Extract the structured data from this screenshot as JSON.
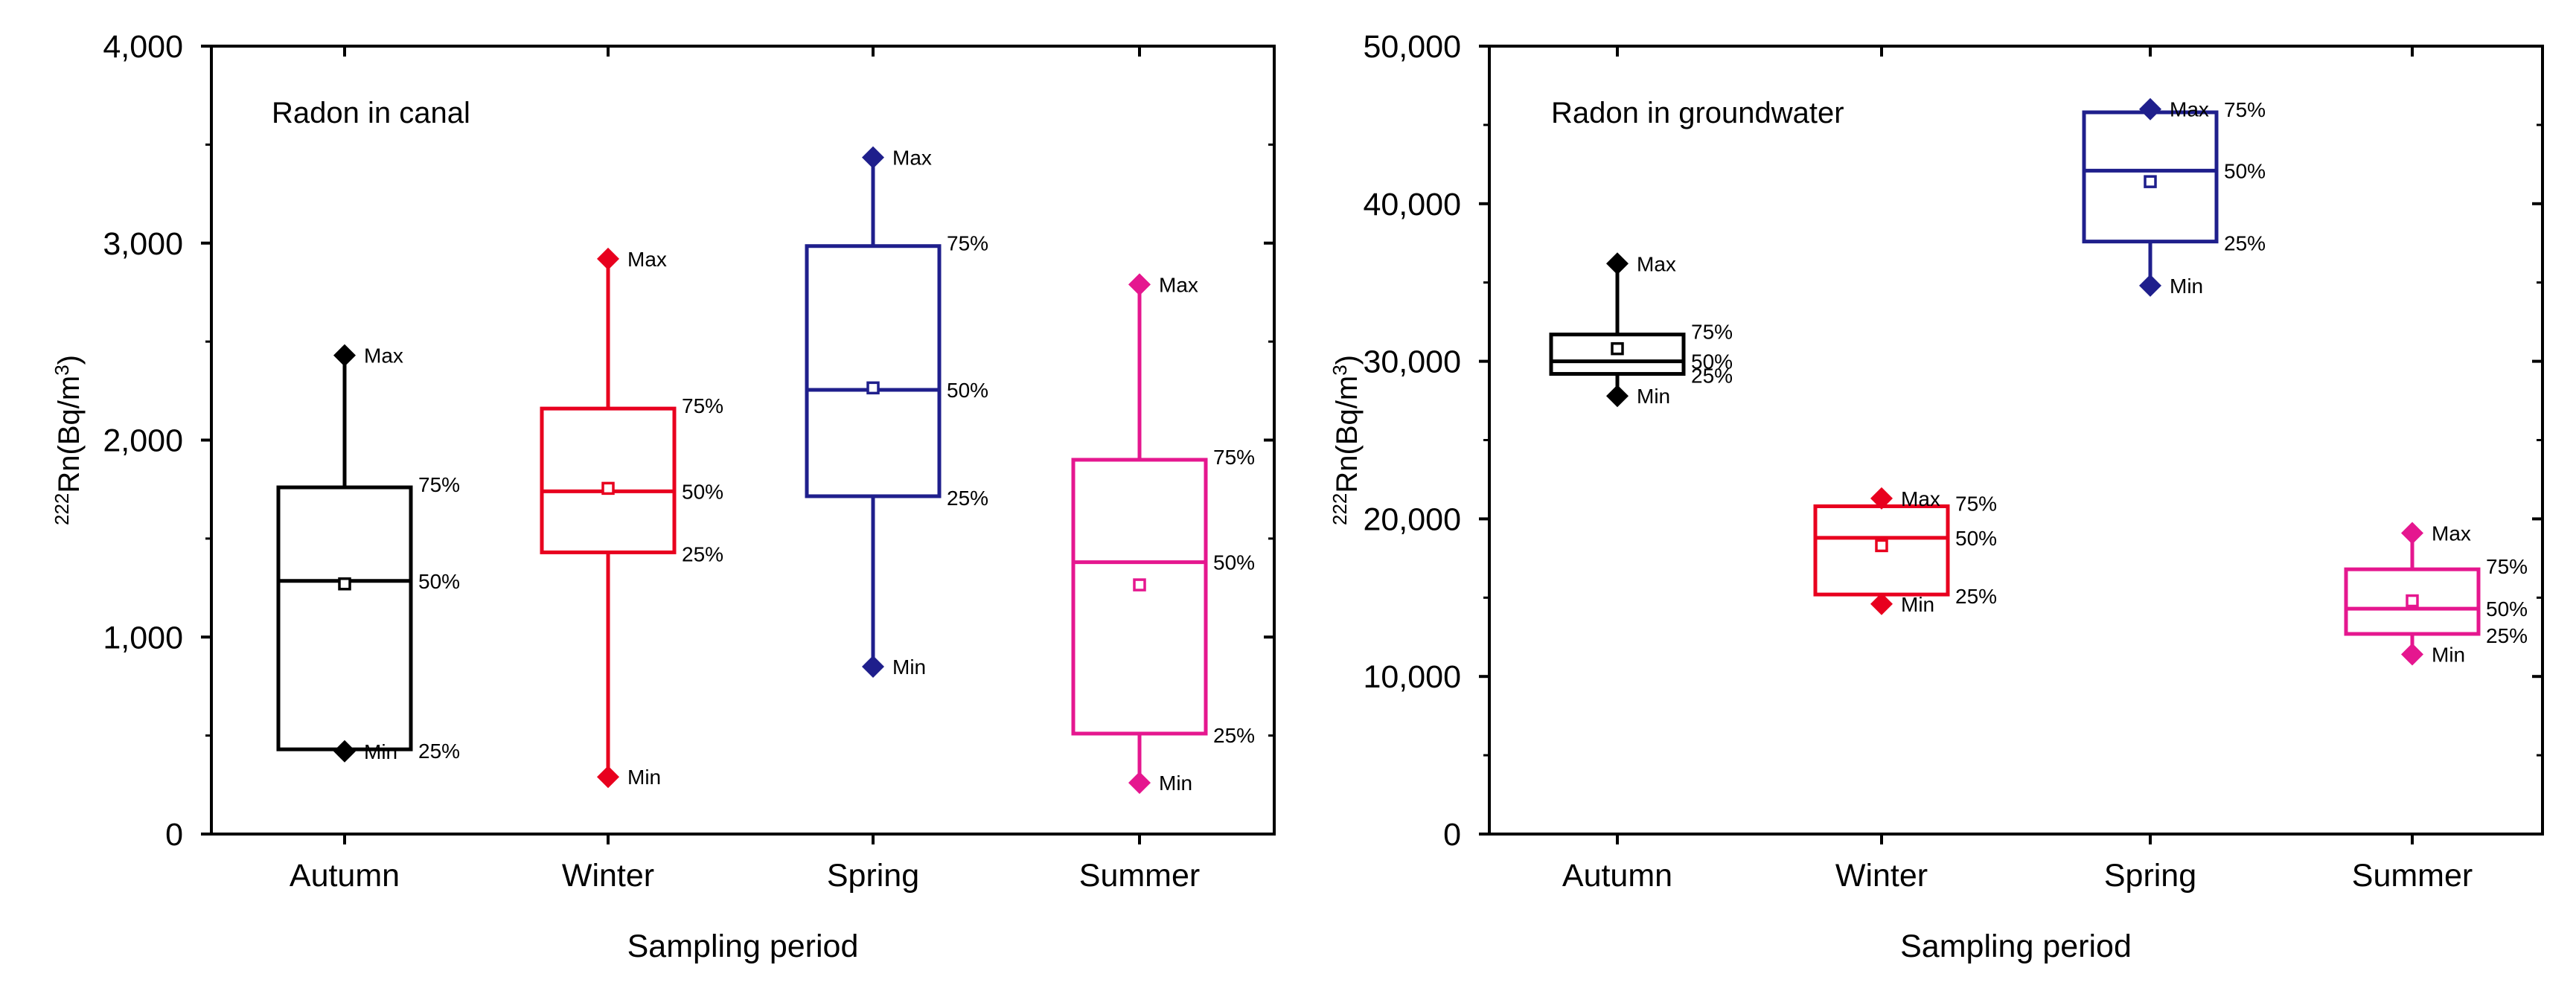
{
  "chart_data": [
    {
      "type": "box",
      "title": "Radon in canal",
      "xlabel": "Sampling period",
      "ylabel_sup": "222",
      "ylabel": "Rn(Bq/m",
      "ylabel_exp": "3",
      "ylabel_end": ")",
      "ylim": [
        0,
        4000
      ],
      "yticks": [
        0,
        1000,
        2000,
        3000,
        4000
      ],
      "ytick_labels": [
        "0",
        "1,000",
        "2,000",
        "3,000",
        "4,000"
      ],
      "categories": [
        "Autumn",
        "Winter",
        "Spring",
        "Summer"
      ],
      "colors": [
        "#000000",
        "#e8001e",
        "#1f1f8c",
        "#e5178f"
      ],
      "boxes": [
        {
          "min": 420,
          "q1": 430,
          "median": 1285,
          "mean": 1270,
          "q3": 1760,
          "max": 2430
        },
        {
          "min": 290,
          "q1": 1430,
          "median": 1740,
          "mean": 1755,
          "q3": 2160,
          "max": 2920
        },
        {
          "min": 850,
          "q1": 1715,
          "median": 2255,
          "mean": 2265,
          "q3": 2985,
          "max": 3435
        },
        {
          "min": 260,
          "q1": 510,
          "median": 1380,
          "mean": 1265,
          "q3": 1900,
          "max": 2790
        }
      ],
      "labels": {
        "max": "Max",
        "min": "Min",
        "q3": "75%",
        "median": "50%",
        "q1": "25%"
      }
    },
    {
      "type": "box",
      "title": "Radon in groundwater",
      "xlabel": "Sampling period",
      "ylabel_sup": "222",
      "ylabel": "Rn(Bq/m",
      "ylabel_exp": "3",
      "ylabel_end": ")",
      "ylim": [
        0,
        50000
      ],
      "yticks": [
        0,
        10000,
        20000,
        30000,
        40000,
        50000
      ],
      "ytick_labels": [
        "0",
        "10,000",
        "20,000",
        "30,000",
        "40,000",
        "50,000"
      ],
      "categories": [
        "Autumn",
        "Winter",
        "Spring",
        "Summer"
      ],
      "colors": [
        "#000000",
        "#e8001e",
        "#1f1f8c",
        "#e5178f"
      ],
      "boxes": [
        {
          "min": 27800,
          "q1": 29200,
          "median": 30000,
          "mean": 30800,
          "q3": 31700,
          "max": 36200
        },
        {
          "min": 14600,
          "q1": 15200,
          "median": 18800,
          "mean": 18300,
          "q3": 20800,
          "max": 21300
        },
        {
          "min": 34800,
          "q1": 37600,
          "median": 42100,
          "mean": 41400,
          "q3": 45800,
          "max": 46000
        },
        {
          "min": 11400,
          "q1": 12700,
          "median": 14300,
          "mean": 14800,
          "q3": 16800,
          "max": 19100
        }
      ],
      "labels": {
        "max": "Max",
        "min": "Min",
        "q3": "75%",
        "median": "50%",
        "q1": "25%"
      }
    }
  ]
}
